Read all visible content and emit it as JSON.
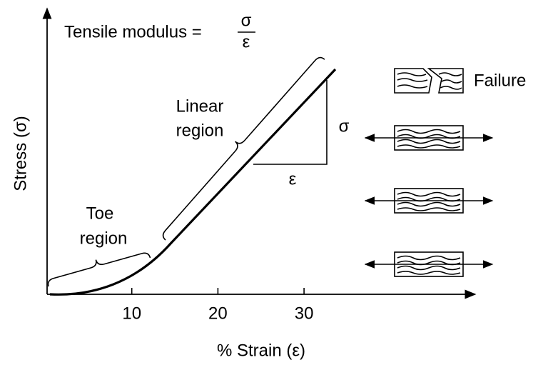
{
  "header": {
    "title": "Tensile modulus =",
    "numerator": "σ",
    "denominator": "ε"
  },
  "axes": {
    "y_label": "Stress (σ)",
    "x_label": "% Strain (ε)",
    "x_ticks": [
      10,
      20,
      30
    ]
  },
  "regions": {
    "linear": [
      "Linear",
      "region"
    ],
    "toe": [
      "Toe",
      "region"
    ]
  },
  "slope": {
    "rise": "σ",
    "run": "ε"
  },
  "specimens": {
    "failure_label": "Failure"
  }
}
